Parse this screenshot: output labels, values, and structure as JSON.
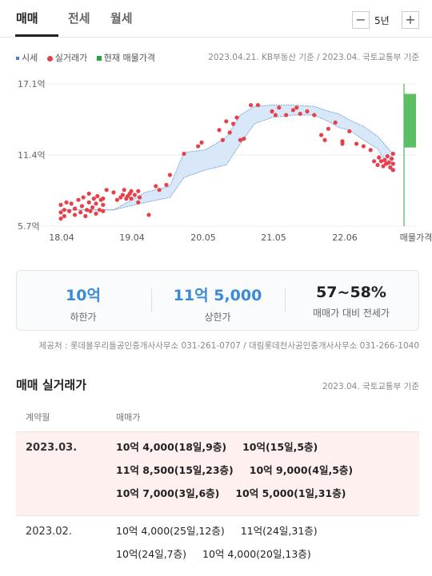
{
  "tabs": [
    "매매",
    "전세",
    "월세"
  ],
  "period": {
    "value": "5년",
    "minus": "−",
    "plus": "+"
  },
  "legend": [
    {
      "label": "시세",
      "color": "#4a7ed0"
    },
    {
      "label": "실거래가",
      "color": "#e8404a"
    },
    {
      "label": "현재 매물가격",
      "color": "#2aa33e"
    }
  ],
  "chart_source": "2023.04.21. KB부동산 기준 / 2023.04. 국토교통부 기준",
  "chart_data": {
    "type": "scatter",
    "y_ticks": [
      "17.1억",
      "11.4억",
      "5.7억"
    ],
    "y_values": [
      17.1,
      11.4,
      5.7
    ],
    "x_ticks": [
      "18.04",
      "19.04",
      "20.05",
      "21.05",
      "22.06",
      "매물가격"
    ],
    "ylim": [
      5.7,
      17.1
    ],
    "listing_range": [
      12.0,
      16.3
    ],
    "band": [
      {
        "x": 0.0,
        "low": 7.0,
        "high": 7.0
      },
      {
        "x": 0.75,
        "low": 7.0,
        "high": 7.0
      },
      {
        "x": 1.2,
        "low": 7.6,
        "high": 8.4
      },
      {
        "x": 1.55,
        "low": 8.0,
        "high": 8.9
      },
      {
        "x": 1.75,
        "low": 9.6,
        "high": 11.6
      },
      {
        "x": 2.05,
        "low": 10.2,
        "high": 11.8
      },
      {
        "x": 2.35,
        "low": 10.6,
        "high": 12.8
      },
      {
        "x": 2.55,
        "low": 12.3,
        "high": 14.6
      },
      {
        "x": 2.75,
        "low": 13.9,
        "high": 15.3
      },
      {
        "x": 3.0,
        "low": 14.4,
        "high": 15.4
      },
      {
        "x": 3.3,
        "low": 14.6,
        "high": 15.4
      },
      {
        "x": 3.6,
        "low": 14.6,
        "high": 15.3
      },
      {
        "x": 3.8,
        "low": 14.1,
        "high": 14.9
      },
      {
        "x": 3.95,
        "low": 13.6,
        "high": 14.7
      },
      {
        "x": 4.1,
        "low": 13.4,
        "high": 14.2
      },
      {
        "x": 4.3,
        "low": 12.6,
        "high": 13.7
      },
      {
        "x": 4.5,
        "low": 11.9,
        "high": 12.9
      },
      {
        "x": 4.7,
        "low": 10.1,
        "high": 11.6
      }
    ],
    "points": [
      [
        0.0,
        6.3
      ],
      [
        0.0,
        6.8
      ],
      [
        0.0,
        7.4
      ],
      [
        0.05,
        6.5
      ],
      [
        0.05,
        7.0
      ],
      [
        0.08,
        7.6
      ],
      [
        0.12,
        6.9
      ],
      [
        0.15,
        7.5
      ],
      [
        0.2,
        6.6
      ],
      [
        0.2,
        7.1
      ],
      [
        0.25,
        7.8
      ],
      [
        0.28,
        6.8
      ],
      [
        0.3,
        7.3
      ],
      [
        0.32,
        8.0
      ],
      [
        0.35,
        6.5
      ],
      [
        0.37,
        7.0
      ],
      [
        0.4,
        7.6
      ],
      [
        0.4,
        8.3
      ],
      [
        0.42,
        6.9
      ],
      [
        0.45,
        7.2
      ],
      [
        0.47,
        7.9
      ],
      [
        0.5,
        6.7
      ],
      [
        0.5,
        7.5
      ],
      [
        0.52,
        8.1
      ],
      [
        0.55,
        7.0
      ],
      [
        0.57,
        7.8
      ],
      [
        0.6,
        6.9
      ],
      [
        0.6,
        7.4
      ],
      [
        0.6,
        7.9
      ],
      [
        0.65,
        8.6
      ],
      [
        0.75,
        8.4
      ],
      [
        0.8,
        7.8
      ],
      [
        0.85,
        8.0
      ],
      [
        0.88,
        8.2
      ],
      [
        0.9,
        8.6
      ],
      [
        0.93,
        7.9
      ],
      [
        0.95,
        8.1
      ],
      [
        0.98,
        8.3
      ],
      [
        1.0,
        7.9
      ],
      [
        1.0,
        8.5
      ],
      [
        1.05,
        8.2
      ],
      [
        1.1,
        7.6
      ],
      [
        1.1,
        8.5
      ],
      [
        1.12,
        8.0
      ],
      [
        1.25,
        6.6
      ],
      [
        1.35,
        8.9
      ],
      [
        1.4,
        8.6
      ],
      [
        1.5,
        9.0
      ],
      [
        1.55,
        9.8
      ],
      [
        1.75,
        11.5
      ],
      [
        1.95,
        12.1
      ],
      [
        2.0,
        12.4
      ],
      [
        2.25,
        13.4
      ],
      [
        2.3,
        12.6
      ],
      [
        2.35,
        14.1
      ],
      [
        2.4,
        13.2
      ],
      [
        2.45,
        13.9
      ],
      [
        2.5,
        14.4
      ],
      [
        2.55,
        12.6
      ],
      [
        2.6,
        12.7
      ],
      [
        2.7,
        15.4
      ],
      [
        2.8,
        15.4
      ],
      [
        3.0,
        14.9
      ],
      [
        3.05,
        14.6
      ],
      [
        3.1,
        15.2
      ],
      [
        3.2,
        14.6
      ],
      [
        3.3,
        15.0
      ],
      [
        3.35,
        15.2
      ],
      [
        3.4,
        14.7
      ],
      [
        3.5,
        14.9
      ],
      [
        3.6,
        14.6
      ],
      [
        3.7,
        13.0
      ],
      [
        3.75,
        12.6
      ],
      [
        3.8,
        13.5
      ],
      [
        3.9,
        14.0
      ],
      [
        4.0,
        12.5
      ],
      [
        4.0,
        12.3
      ],
      [
        4.1,
        13.3
      ],
      [
        4.2,
        12.3
      ],
      [
        4.3,
        12.1
      ],
      [
        4.4,
        11.8
      ],
      [
        4.45,
        10.9
      ],
      [
        4.5,
        10.6
      ],
      [
        4.52,
        11.2
      ],
      [
        4.55,
        10.9
      ],
      [
        4.58,
        10.5
      ],
      [
        4.6,
        11.0
      ],
      [
        4.62,
        10.7
      ],
      [
        4.64,
        11.3
      ],
      [
        4.66,
        10.8
      ],
      [
        4.68,
        10.4
      ],
      [
        4.7,
        11.1
      ],
      [
        4.72,
        10.7
      ],
      [
        4.72,
        10.2
      ],
      [
        4.72,
        11.5
      ]
    ]
  },
  "summary": [
    {
      "value": "10억",
      "label": "하한가",
      "color": "#3a8ad8"
    },
    {
      "value": "11억 5,000",
      "label": "상한가",
      "color": "#3a8ad8"
    },
    {
      "value": "57~58%",
      "label": "매매가 대비 전세가",
      "color": "#222222"
    }
  ],
  "provider": "제공처 : 롯데몰우리들공인중개사사무소 031-261-0707 / 대림롯데천사공인중개사사무소 031-266-1040",
  "section": {
    "title": "매매 실거래가",
    "source": "2023.04. 국토교통부 기준",
    "col_month": "계약월",
    "col_price": "매매가"
  },
  "deals": [
    {
      "month": "2023.03.",
      "highlight": true,
      "lines": [
        [
          "10억 4,000(18일,9층)",
          "10억(15일,5층)"
        ],
        [
          "11억 8,500(15일,23층)",
          "10억 9,000(4일,5층)"
        ],
        [
          "10억 7,000(3일,6층)",
          "10억 5,000(1일,31층)"
        ]
      ]
    },
    {
      "month": "2023.02.",
      "highlight": false,
      "lines": [
        [
          "10억 4,000(25일,12층)",
          "11억(24일,31층)"
        ],
        [
          "10억(24일,7층)",
          "10억 4,000(20일,13층)"
        ]
      ]
    }
  ]
}
